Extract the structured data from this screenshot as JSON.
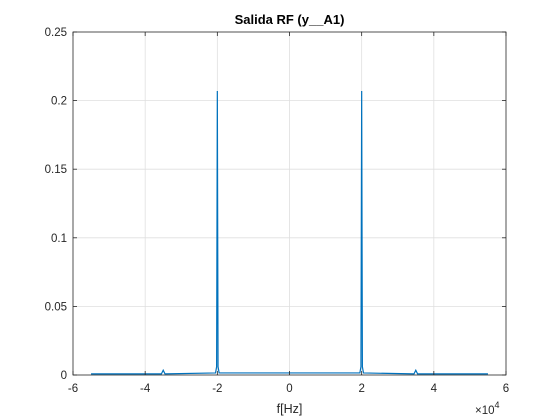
{
  "chart_data": {
    "type": "line",
    "title": "Salida RF (y__A1)",
    "xlabel": "f[Hz]",
    "ylabel": "",
    "x_exponent_label": "×10",
    "x_exponent_power": "4",
    "xlim": [
      -6,
      6
    ],
    "ylim": [
      0,
      0.25
    ],
    "x_scale_factor": 10000,
    "xticks": [
      -6,
      -4,
      -2,
      0,
      2,
      4,
      6
    ],
    "xtick_labels": [
      "-6",
      "-4",
      "-2",
      "0",
      "2",
      "4",
      "6"
    ],
    "yticks": [
      0,
      0.05,
      0.1,
      0.15,
      0.2,
      0.25
    ],
    "ytick_labels": [
      "0",
      "0.05",
      "0.1",
      "0.15",
      "0.2",
      "0.25"
    ],
    "grid": true,
    "series": [
      {
        "color": "#0072bd",
        "x": [
          -5.5,
          -4.0,
          -3.55,
          -3.5,
          -3.45,
          -2.05,
          -2.02,
          -2.0,
          -1.98,
          -1.95,
          1.95,
          1.98,
          2.0,
          2.02,
          2.05,
          3.45,
          3.5,
          3.55,
          4.0,
          5.5
        ],
        "y": [
          0.0008,
          0.0008,
          0.0008,
          0.0035,
          0.0008,
          0.0015,
          0.006,
          0.207,
          0.006,
          0.0015,
          0.0015,
          0.006,
          0.207,
          0.006,
          0.0015,
          0.0008,
          0.0035,
          0.0008,
          0.0008,
          0.0008
        ]
      }
    ]
  }
}
